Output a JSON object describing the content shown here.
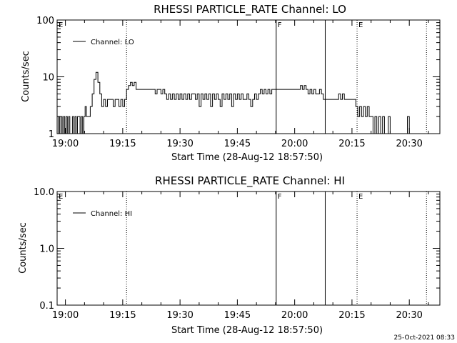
{
  "footer": {
    "date": "25-Oct-2021 08:33"
  },
  "chart_data": [
    {
      "type": "line",
      "id": "lo",
      "title": "RHESSI PARTICLE_RATE Channel: LO",
      "xlabel": "Start Time (28-Aug-12 18:57:50)",
      "ylabel": "Counts/sec",
      "y_scale": "log",
      "ylim": [
        1,
        100
      ],
      "y_ticks": [
        1,
        10,
        100
      ],
      "y_tick_labels": [
        "1",
        "10",
        "100"
      ],
      "xlim": [
        "18:57:50",
        "20:38:00"
      ],
      "x_ticks": [
        "19:00",
        "19:15",
        "19:30",
        "19:45",
        "20:00",
        "20:15",
        "20:30"
      ],
      "legend": {
        "position": "top-left",
        "entries": [
          "Channel: LO"
        ]
      },
      "vertical_markers": [
        {
          "time": "18:57:50",
          "style": "dotted",
          "label": "E"
        },
        {
          "time": "19:16:00",
          "style": "dotted",
          "label": ""
        },
        {
          "time": "19:55:10",
          "style": "solid",
          "label": "F"
        },
        {
          "time": "20:08:00",
          "style": "solid",
          "label": ""
        },
        {
          "time": "20:16:20",
          "style": "dotted",
          "label": "E"
        },
        {
          "time": "20:34:30",
          "style": "dotted",
          "label": ""
        }
      ],
      "series": [
        {
          "name": "Channel: LO",
          "points": [
            [
              "18:57:50",
              1
            ],
            [
              "18:58:10",
              2
            ],
            [
              "18:58:30",
              1
            ],
            [
              "18:58:50",
              2
            ],
            [
              "18:59:10",
              1
            ],
            [
              "18:59:30",
              2
            ],
            [
              "18:59:50",
              1
            ],
            [
              "19:00:10",
              2
            ],
            [
              "19:00:30",
              1
            ],
            [
              "19:00:50",
              2
            ],
            [
              "19:01:10",
              1
            ],
            [
              "19:01:30",
              1
            ],
            [
              "19:01:50",
              2
            ],
            [
              "19:02:10",
              1
            ],
            [
              "19:02:30",
              2
            ],
            [
              "19:02:50",
              1
            ],
            [
              "19:03:10",
              2
            ],
            [
              "19:03:30",
              2
            ],
            [
              "19:03:50",
              1
            ],
            [
              "19:04:10",
              2
            ],
            [
              "19:04:30",
              1
            ],
            [
              "19:04:50",
              2
            ],
            [
              "19:05:10",
              3
            ],
            [
              "19:05:30",
              2
            ],
            [
              "19:06:00",
              2
            ],
            [
              "19:06:30",
              3
            ],
            [
              "19:07:00",
              5
            ],
            [
              "19:07:30",
              9
            ],
            [
              "19:08:00",
              12
            ],
            [
              "19:08:30",
              8
            ],
            [
              "19:09:00",
              5
            ],
            [
              "19:09:30",
              3
            ],
            [
              "19:10:00",
              4
            ],
            [
              "19:10:30",
              3
            ],
            [
              "19:11:00",
              4
            ],
            [
              "19:11:30",
              4
            ],
            [
              "19:12:00",
              4
            ],
            [
              "19:12:30",
              3
            ],
            [
              "19:13:00",
              4
            ],
            [
              "19:13:30",
              4
            ],
            [
              "19:14:00",
              3
            ],
            [
              "19:14:30",
              4
            ],
            [
              "19:15:00",
              3
            ],
            [
              "19:15:30",
              4
            ],
            [
              "19:16:00",
              6
            ],
            [
              "19:16:30",
              7
            ],
            [
              "19:17:00",
              8
            ],
            [
              "19:17:30",
              7
            ],
            [
              "19:18:00",
              8
            ],
            [
              "19:18:30",
              6
            ],
            [
              "19:19:00",
              6
            ],
            [
              "19:20:00",
              6
            ],
            [
              "19:21:00",
              6
            ],
            [
              "19:22:00",
              6
            ],
            [
              "19:23:00",
              6
            ],
            [
              "19:23:30",
              5
            ],
            [
              "19:24:00",
              6
            ],
            [
              "19:25:00",
              5
            ],
            [
              "19:25:30",
              6
            ],
            [
              "19:26:00",
              5
            ],
            [
              "19:26:30",
              4
            ],
            [
              "19:27:00",
              5
            ],
            [
              "19:27:30",
              4
            ],
            [
              "19:28:00",
              5
            ],
            [
              "19:28:30",
              4
            ],
            [
              "19:29:00",
              5
            ],
            [
              "19:29:30",
              4
            ],
            [
              "19:30:00",
              5
            ],
            [
              "19:30:30",
              4
            ],
            [
              "19:31:00",
              5
            ],
            [
              "19:31:30",
              4
            ],
            [
              "19:32:00",
              5
            ],
            [
              "19:32:30",
              4
            ],
            [
              "19:33:00",
              5
            ],
            [
              "19:33:30",
              5
            ],
            [
              "19:34:00",
              4
            ],
            [
              "19:34:30",
              5
            ],
            [
              "19:35:00",
              3
            ],
            [
              "19:35:30",
              5
            ],
            [
              "19:36:00",
              4
            ],
            [
              "19:36:30",
              5
            ],
            [
              "19:37:00",
              4
            ],
            [
              "19:37:30",
              5
            ],
            [
              "19:38:00",
              3
            ],
            [
              "19:38:30",
              5
            ],
            [
              "19:39:00",
              4
            ],
            [
              "19:39:30",
              5
            ],
            [
              "19:40:00",
              4
            ],
            [
              "19:40:30",
              3
            ],
            [
              "19:41:00",
              5
            ],
            [
              "19:41:30",
              4
            ],
            [
              "19:42:00",
              5
            ],
            [
              "19:42:30",
              4
            ],
            [
              "19:43:00",
              5
            ],
            [
              "19:43:30",
              3
            ],
            [
              "19:44:00",
              5
            ],
            [
              "19:44:30",
              4
            ],
            [
              "19:45:00",
              5
            ],
            [
              "19:45:30",
              4
            ],
            [
              "19:46:00",
              5
            ],
            [
              "19:46:30",
              4
            ],
            [
              "19:47:00",
              4
            ],
            [
              "19:47:30",
              5
            ],
            [
              "19:48:00",
              4
            ],
            [
              "19:48:30",
              3
            ],
            [
              "19:49:00",
              4
            ],
            [
              "19:49:30",
              5
            ],
            [
              "19:50:00",
              4
            ],
            [
              "19:50:30",
              5
            ],
            [
              "19:51:00",
              6
            ],
            [
              "19:51:30",
              5
            ],
            [
              "19:52:00",
              6
            ],
            [
              "19:52:30",
              5
            ],
            [
              "19:53:00",
              6
            ],
            [
              "19:53:30",
              5
            ],
            [
              "19:54:00",
              6
            ],
            [
              "19:55:00",
              6
            ],
            [
              "19:56:00",
              6
            ],
            [
              "19:57:00",
              6
            ],
            [
              "19:58:00",
              6
            ],
            [
              "19:59:00",
              6
            ],
            [
              "20:00:00",
              6
            ],
            [
              "20:01:00",
              6
            ],
            [
              "20:01:30",
              7
            ],
            [
              "20:02:00",
              6
            ],
            [
              "20:02:30",
              7
            ],
            [
              "20:03:00",
              6
            ],
            [
              "20:03:30",
              5
            ],
            [
              "20:04:00",
              6
            ],
            [
              "20:04:30",
              5
            ],
            [
              "20:05:00",
              6
            ],
            [
              "20:05:30",
              5
            ],
            [
              "20:06:00",
              5
            ],
            [
              "20:06:30",
              6
            ],
            [
              "20:07:00",
              5
            ],
            [
              "20:07:30",
              4
            ],
            [
              "20:08:00",
              4
            ],
            [
              "20:09:00",
              4
            ],
            [
              "20:10:00",
              4
            ],
            [
              "20:11:00",
              4
            ],
            [
              "20:11:30",
              5
            ],
            [
              "20:12:00",
              4
            ],
            [
              "20:12:30",
              5
            ],
            [
              "20:13:00",
              4
            ],
            [
              "20:14:00",
              4
            ],
            [
              "20:15:00",
              4
            ],
            [
              "20:15:30",
              4
            ],
            [
              "20:16:00",
              3
            ],
            [
              "20:16:30",
              2
            ],
            [
              "20:17:00",
              3
            ],
            [
              "20:17:30",
              2
            ],
            [
              "20:18:00",
              3
            ],
            [
              "20:18:30",
              2
            ],
            [
              "20:19:00",
              3
            ],
            [
              "20:19:30",
              2
            ],
            [
              "20:20:00",
              2
            ],
            [
              "20:20:30",
              1
            ],
            [
              "20:21:00",
              2
            ],
            [
              "20:21:30",
              1
            ],
            [
              "20:22:00",
              2
            ],
            [
              "20:22:30",
              1
            ],
            [
              "20:23:00",
              2
            ],
            [
              "20:23:30",
              1
            ],
            [
              "20:24:00",
              1
            ],
            [
              "20:24:30",
              2
            ],
            [
              "20:25:00",
              1
            ],
            [
              "20:26:00",
              1
            ],
            [
              "20:27:00",
              1
            ],
            [
              "20:28:00",
              1
            ],
            [
              "20:29:00",
              1
            ],
            [
              "20:29:30",
              2
            ],
            [
              "20:30:00",
              1
            ],
            [
              "20:31:00",
              1
            ],
            [
              "20:32:00",
              1
            ]
          ]
        }
      ]
    },
    {
      "type": "line",
      "id": "hi",
      "title": "RHESSI PARTICLE_RATE Channel: HI",
      "xlabel": "Start Time (28-Aug-12 18:57:50)",
      "ylabel": "Counts/sec",
      "y_scale": "log",
      "ylim": [
        0.1,
        10
      ],
      "y_ticks": [
        0.1,
        1,
        10
      ],
      "y_tick_labels": [
        "0.1",
        "1.0",
        "10.0"
      ],
      "xlim": [
        "18:57:50",
        "20:38:00"
      ],
      "x_ticks": [
        "19:00",
        "19:15",
        "19:30",
        "19:45",
        "20:00",
        "20:15",
        "20:30"
      ],
      "legend": {
        "position": "top-left",
        "entries": [
          "Channel: HI"
        ]
      },
      "vertical_markers": [
        {
          "time": "18:57:50",
          "style": "dotted",
          "label": "E"
        },
        {
          "time": "19:16:00",
          "style": "dotted",
          "label": ""
        },
        {
          "time": "19:55:10",
          "style": "solid",
          "label": "F"
        },
        {
          "time": "20:08:00",
          "style": "solid",
          "label": ""
        },
        {
          "time": "20:16:20",
          "style": "dotted",
          "label": "E"
        },
        {
          "time": "20:34:30",
          "style": "dotted",
          "label": ""
        }
      ],
      "series": [
        {
          "name": "Channel: HI",
          "points": []
        }
      ]
    }
  ]
}
